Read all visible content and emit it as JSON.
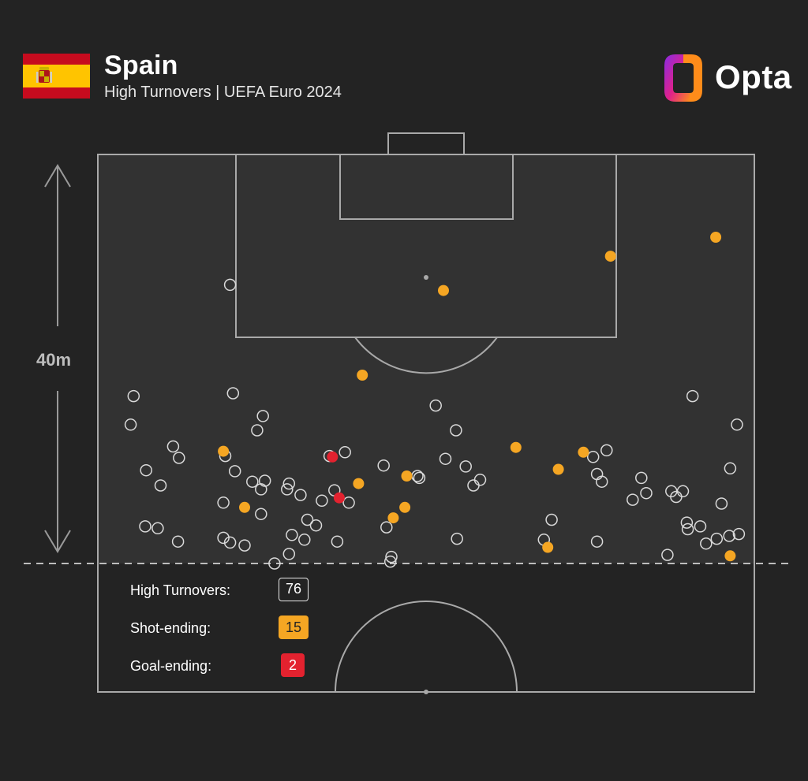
{
  "header": {
    "team": "Spain",
    "subtitle": "High Turnovers | UEFA Euro 2024",
    "brand": "Opta"
  },
  "scale_label": "40m",
  "legend": {
    "items": [
      {
        "label": "High Turnovers:",
        "value": "76",
        "kind": "all"
      },
      {
        "label": "Shot-ending:",
        "value": "15",
        "kind": "shot"
      },
      {
        "label": "Goal-ending:",
        "value": "2",
        "kind": "goal"
      }
    ]
  },
  "colors": {
    "background": "#232323",
    "pitch": "#323232",
    "lines": "#a9a9a9",
    "shot_ending": "#f5a623",
    "goal_ending": "#e3222f",
    "turnover_outline": "#d9d9d9"
  },
  "chart_data": {
    "type": "scatter",
    "title": "Spain",
    "subtitle": "High Turnovers | UEFA Euro 2024",
    "units": "metres from goal line (y), metres from left touchline (x)",
    "xlim": [
      0,
      68
    ],
    "ylim": [
      0,
      43
    ],
    "series": [
      {
        "name": "High Turnovers",
        "points": [
          [
            13.7,
            29.3
          ],
          [
            3.4,
            14.6
          ],
          [
            17.1,
            15.5
          ],
          [
            16.5,
            14.0
          ],
          [
            17.3,
            8.7
          ],
          [
            13.0,
            6.4
          ],
          [
            19.6,
            7.8
          ],
          [
            16.9,
            7.8
          ],
          [
            5.0,
            9.8
          ],
          [
            4.9,
            3.9
          ],
          [
            7.8,
            12.3
          ],
          [
            8.4,
            11.1
          ],
          [
            6.5,
            8.2
          ],
          [
            6.2,
            3.7
          ],
          [
            8.3,
            2.3
          ],
          [
            13.7,
            2.2
          ],
          [
            15.2,
            1.9
          ],
          [
            16.9,
            5.2
          ],
          [
            20.1,
            3.0
          ],
          [
            19.8,
            1.0
          ],
          [
            21.7,
            4.6
          ],
          [
            13.0,
            2.7
          ],
          [
            21.4,
            2.5
          ],
          [
            22.6,
            4.0
          ],
          [
            18.3,
            -0.0
          ],
          [
            19.8,
            8.4
          ],
          [
            21.0,
            7.2
          ],
          [
            23.2,
            6.6
          ],
          [
            26.0,
            6.4
          ],
          [
            29.9,
            3.8
          ],
          [
            24.5,
            7.7
          ],
          [
            24.8,
            2.3
          ],
          [
            29.6,
            10.3
          ],
          [
            33.1,
            9.2
          ],
          [
            33.3,
            9.0
          ],
          [
            30.4,
            0.7
          ],
          [
            30.3,
            0.2
          ],
          [
            37.1,
            14.0
          ],
          [
            36.0,
            11.0
          ],
          [
            38.1,
            10.2
          ],
          [
            35.0,
            16.6
          ],
          [
            38.9,
            8.2
          ],
          [
            37.2,
            2.6
          ],
          [
            39.6,
            8.8
          ],
          [
            46.2,
            2.5
          ],
          [
            51.7,
            2.3
          ],
          [
            55.4,
            6.7
          ],
          [
            56.3,
            9.0
          ],
          [
            56.8,
            7.4
          ],
          [
            59.0,
            0.9
          ],
          [
            59.4,
            7.6
          ],
          [
            60.6,
            7.6
          ],
          [
            59.9,
            7.0
          ],
          [
            61.1,
            3.6
          ],
          [
            63.0,
            2.1
          ],
          [
            62.4,
            3.9
          ],
          [
            64.1,
            2.6
          ],
          [
            65.4,
            2.9
          ],
          [
            64.6,
            6.3
          ],
          [
            66.4,
            3.1
          ],
          [
            65.5,
            10.0
          ],
          [
            66.2,
            14.6
          ],
          [
            52.2,
            8.6
          ],
          [
            47.0,
            4.6
          ],
          [
            52.7,
            11.9
          ],
          [
            51.3,
            11.2
          ],
          [
            51.7,
            9.4
          ],
          [
            61.6,
            17.6
          ],
          [
            61.0,
            4.3
          ],
          [
            3.7,
            17.6
          ],
          [
            14.0,
            17.9
          ],
          [
            13.2,
            11.3
          ],
          [
            16.0,
            8.6
          ],
          [
            14.2,
            9.7
          ],
          [
            25.6,
            11.7
          ],
          [
            24.0,
            11.3
          ]
        ]
      },
      {
        "name": "Shot-ending",
        "points": [
          [
            64.0,
            34.3
          ],
          [
            53.1,
            32.3
          ],
          [
            35.8,
            28.7
          ],
          [
            27.4,
            19.8
          ],
          [
            13.0,
            11.8
          ],
          [
            43.3,
            12.2
          ],
          [
            47.7,
            9.9
          ],
          [
            50.3,
            11.7
          ],
          [
            15.2,
            5.9
          ],
          [
            31.8,
            5.9
          ],
          [
            30.6,
            4.8
          ],
          [
            46.6,
            1.7
          ],
          [
            65.5,
            0.8
          ],
          [
            27.0,
            8.4
          ],
          [
            32.0,
            9.2
          ]
        ]
      },
      {
        "name": "Goal-ending",
        "points": [
          [
            24.3,
            11.2
          ],
          [
            25.0,
            6.9
          ]
        ]
      }
    ]
  }
}
